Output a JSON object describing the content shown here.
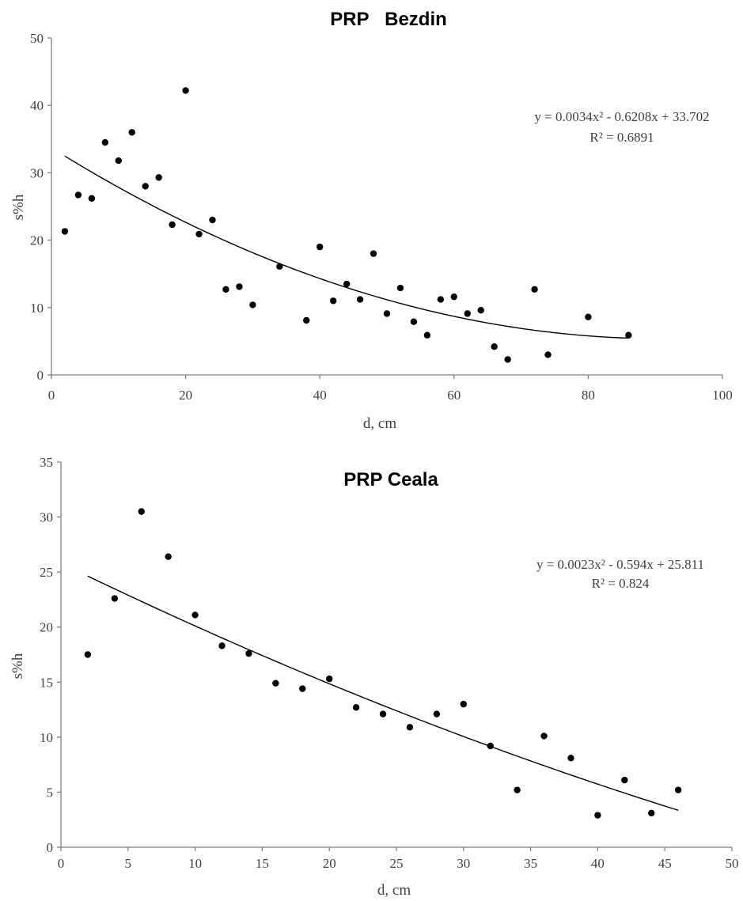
{
  "chart_data": [
    {
      "type": "scatter",
      "title": "PRP   Bezdin",
      "xlabel": "d, cm",
      "ylabel": "s%h",
      "xlim": [
        0,
        100
      ],
      "ylim": [
        0,
        50
      ],
      "xticks": [
        0,
        20,
        40,
        60,
        80,
        100
      ],
      "yticks": [
        0,
        10,
        20,
        30,
        40,
        50
      ],
      "grid": false,
      "series": [
        {
          "points": [
            [
              2,
              21.3
            ],
            [
              4,
              26.7
            ],
            [
              6,
              26.2
            ],
            [
              8,
              34.5
            ],
            [
              10,
              31.8
            ],
            [
              12,
              36.0
            ],
            [
              14,
              28.0
            ],
            [
              16,
              29.3
            ],
            [
              18,
              22.3
            ],
            [
              20,
              42.2
            ],
            [
              22,
              20.9
            ],
            [
              24,
              23.0
            ],
            [
              26,
              12.7
            ],
            [
              28,
              13.1
            ],
            [
              30,
              10.4
            ],
            [
              34,
              16.1
            ],
            [
              38,
              8.1
            ],
            [
              40,
              19.0
            ],
            [
              42,
              11.0
            ],
            [
              44,
              13.5
            ],
            [
              46,
              11.2
            ],
            [
              48,
              18.0
            ],
            [
              50,
              9.1
            ],
            [
              52,
              12.9
            ],
            [
              54,
              7.9
            ],
            [
              56,
              5.9
            ],
            [
              58,
              11.2
            ],
            [
              60,
              11.6
            ],
            [
              62,
              9.1
            ],
            [
              64,
              9.6
            ],
            [
              66,
              4.2
            ],
            [
              68,
              2.3
            ],
            [
              72,
              12.7
            ],
            [
              74,
              3.0
            ],
            [
              80,
              8.6
            ],
            [
              86,
              5.9
            ]
          ]
        }
      ],
      "trendline": {
        "type": "polynomial",
        "coefficients": [
          0.0034,
          -0.6208,
          33.702
        ],
        "x_range": [
          2,
          86
        ],
        "equation_text": "y = 0.0034x² - 0.6208x + 33.702",
        "r2_text": "R² = 0.6891"
      }
    },
    {
      "type": "scatter",
      "title": "PRP Ceala",
      "xlabel": "d, cm",
      "ylabel": "s%h",
      "xlim": [
        0,
        50
      ],
      "ylim": [
        0,
        35
      ],
      "xticks": [
        0,
        5,
        10,
        15,
        20,
        25,
        30,
        35,
        40,
        45,
        50
      ],
      "yticks": [
        0,
        5,
        10,
        15,
        20,
        25,
        30,
        35
      ],
      "grid": false,
      "series": [
        {
          "points": [
            [
              2,
              17.5
            ],
            [
              4,
              22.6
            ],
            [
              6,
              30.5
            ],
            [
              8,
              26.4
            ],
            [
              10,
              21.1
            ],
            [
              12,
              18.3
            ],
            [
              14,
              17.6
            ],
            [
              16,
              14.9
            ],
            [
              18,
              14.4
            ],
            [
              20,
              15.3
            ],
            [
              22,
              12.7
            ],
            [
              24,
              12.1
            ],
            [
              26,
              10.9
            ],
            [
              28,
              12.1
            ],
            [
              30,
              13.0
            ],
            [
              32,
              9.2
            ],
            [
              34,
              5.2
            ],
            [
              36,
              10.1
            ],
            [
              38,
              8.1
            ],
            [
              40,
              2.9
            ],
            [
              42,
              6.1
            ],
            [
              44,
              3.1
            ],
            [
              46,
              5.2
            ]
          ]
        }
      ],
      "trendline": {
        "type": "polynomial",
        "coefficients": [
          0.0023,
          -0.594,
          25.811
        ],
        "x_range": [
          2,
          46
        ],
        "equation_text": "y = 0.0023x² - 0.594x + 25.811",
        "r2_text": "R² = 0.824"
      }
    }
  ]
}
